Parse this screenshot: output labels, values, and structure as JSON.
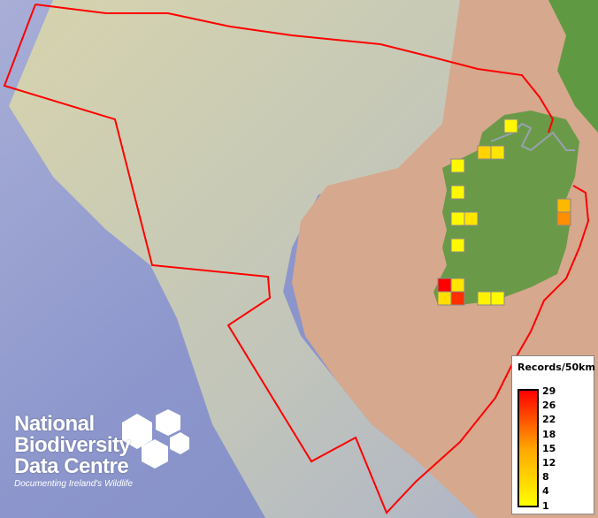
{
  "map": {
    "colors": {
      "sea_deep": "#8a94c8",
      "sea_shelf": "#d9d6a8",
      "land": "#d4a68c",
      "ireland": "#6a9a48",
      "boundary": "#ff0000",
      "border": "#9aa0b0"
    },
    "cells": [
      {
        "records": 2
      },
      {
        "records": 8
      },
      {
        "records": 5
      },
      {
        "records": 2
      },
      {
        "records": 2
      },
      {
        "records": 2
      },
      {
        "records": 5
      },
      {
        "records": 2
      },
      {
        "records": 12
      },
      {
        "records": 17
      },
      {
        "records": 29
      },
      {
        "records": 5
      },
      {
        "records": 6
      },
      {
        "records": 25
      },
      {
        "records": 3
      },
      {
        "records": 2
      }
    ]
  },
  "legend": {
    "title": "Records/50km",
    "ticks": [
      "29",
      "26",
      "22",
      "18",
      "15",
      "12",
      "8",
      "4",
      "1"
    ],
    "min_color": "#ffff00",
    "mid_color": "#ffa500",
    "max_color": "#ff0000"
  },
  "logo": {
    "line1": "National",
    "line2": "Biodiversity",
    "line3": "Data Centre",
    "tagline": "Documenting Ireland's Wildlife"
  }
}
